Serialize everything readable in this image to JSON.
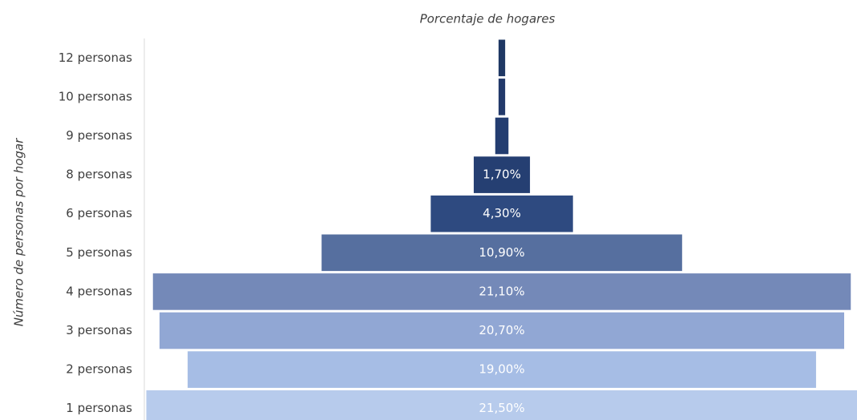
{
  "chart_data": {
    "type": "funnel",
    "x_label": "Porcentaje de hogares",
    "y_label": "Número de personas por hogar",
    "categories": [
      "12 personas",
      "10 personas",
      "9 personas",
      "8 personas",
      "6 personas",
      "5 personas",
      "4 personas",
      "3 personas",
      "2 personas",
      "1 personas"
    ],
    "values": [
      0.2,
      0.2,
      0.4,
      1.7,
      4.3,
      10.9,
      21.1,
      20.7,
      19.0,
      21.5
    ],
    "value_labels": [
      null,
      null,
      null,
      "1,70%",
      "4,30%",
      "10,90%",
      "21,10%",
      "20,70%",
      "19,00%",
      "21,50%"
    ],
    "colors": [
      "#1f3864",
      "#22396a",
      "#233d70",
      "#253f72",
      "#2e4a80",
      "#566f9f",
      "#7489b8",
      "#91a7d4",
      "#a6bde5",
      "#b7cbec"
    ]
  }
}
